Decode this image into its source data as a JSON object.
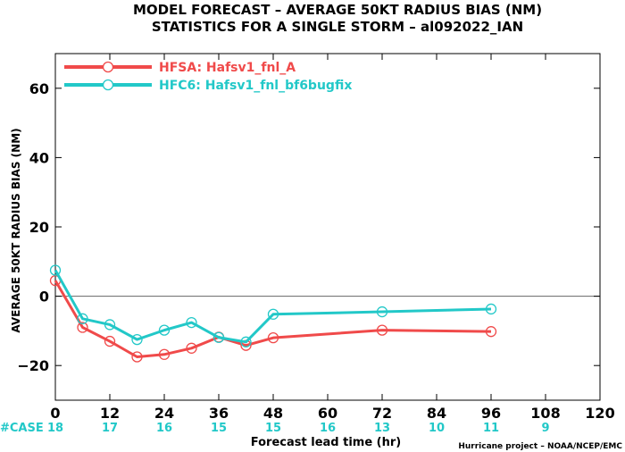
{
  "title_line1": "MODEL FORECAST – AVERAGE 50KT RADIUS BIAS (NM)",
  "title_line2": "STATISTICS FOR A SINGLE STORM – al092022_IAN",
  "case_label": "#CASE",
  "credit": "Hurricane project – NOAA/NCEP/EMC",
  "chart_data": {
    "type": "line",
    "title": "MODEL FORECAST – AVERAGE 50KT RADIUS BIAS (NM)",
    "subtitle": "STATISTICS FOR A SINGLE STORM – al092022_IAN",
    "xlabel": "Forecast lead time (hr)",
    "ylabel": "AVERAGE 50KT RADIUS BIAS (NM)",
    "xlim": [
      0,
      120
    ],
    "ylim": [
      -30,
      70
    ],
    "xticks": [
      0,
      12,
      24,
      36,
      48,
      60,
      72,
      84,
      96,
      108,
      120
    ],
    "yticks": [
      -20,
      0,
      20,
      40,
      60
    ],
    "reference_line": 0,
    "legend_position": "top-left",
    "series": [
      {
        "name": "HFSA: Hafsv1_fnl_A",
        "color": "#f04a4a",
        "x": [
          0,
          6,
          12,
          18,
          24,
          30,
          36,
          42,
          48,
          72,
          96
        ],
        "y": [
          4.5,
          -9,
          -13,
          -17.5,
          -16.8,
          -15,
          -11.8,
          -14.2,
          -12,
          -9.8,
          -10.2
        ]
      },
      {
        "name": "HFC6: Hafsv1_fnl_bf6bugfix",
        "color": "#22c8c8",
        "x": [
          0,
          6,
          12,
          18,
          24,
          30,
          36,
          42,
          48,
          72,
          96
        ],
        "y": [
          7.5,
          -6.5,
          -8.2,
          -12.5,
          -9.8,
          -7.6,
          -11.9,
          -13.2,
          -5.2,
          -4.5,
          -3.7
        ]
      }
    ],
    "case_counts": {
      "x": [
        0,
        12,
        24,
        36,
        48,
        60,
        72,
        84,
        96,
        108
      ],
      "values": [
        "18",
        "17",
        "16",
        "15",
        "15",
        "16",
        "13",
        "10",
        "11",
        "9"
      ]
    }
  }
}
